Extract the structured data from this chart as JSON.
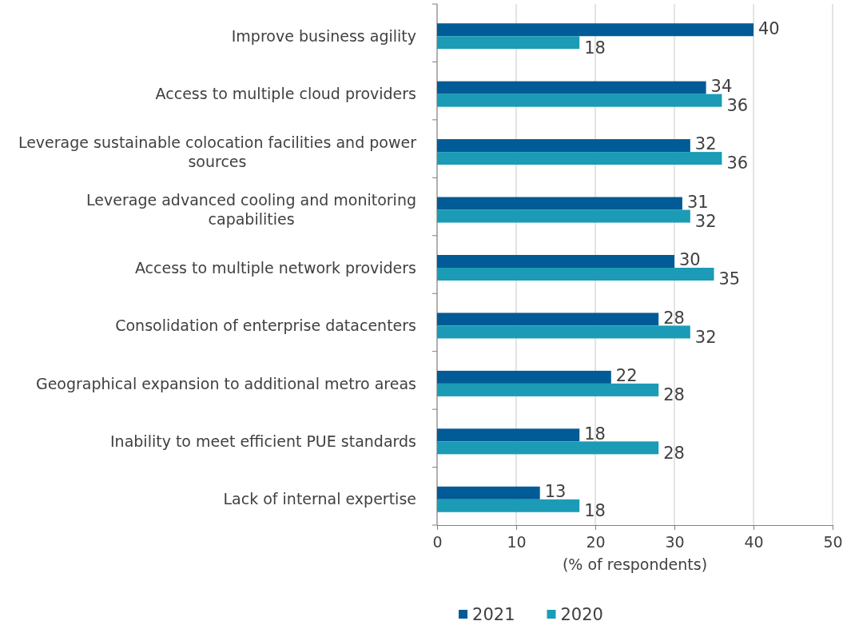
{
  "chart_data": {
    "type": "bar",
    "orientation": "horizontal",
    "xlabel": "(% of respondents)",
    "categories": [
      "Improve business agility",
      "Access to multiple cloud providers",
      "Leverage sustainable colocation facilities and power sources",
      "Leverage advanced cooling and monitoring capabilities",
      "Access to multiple network providers",
      "Consolidation of enterprise datacenters",
      "Geographical expansion to additional metro areas",
      "Inability to meet efficient PUE standards",
      "Lack of internal expertise"
    ],
    "series": [
      {
        "name": "2021",
        "color": "#005b96",
        "values": [
          40,
          34,
          32,
          31,
          30,
          28,
          22,
          18,
          13
        ]
      },
      {
        "name": "2020",
        "color": "#1b9bb6",
        "values": [
          18,
          36,
          36,
          32,
          35,
          32,
          28,
          28,
          18
        ]
      }
    ],
    "xlim": [
      0,
      50
    ],
    "xticks": [
      0,
      10,
      20,
      30,
      40,
      50
    ],
    "grid": "x",
    "legend": "bottom",
    "data_labels": true
  }
}
